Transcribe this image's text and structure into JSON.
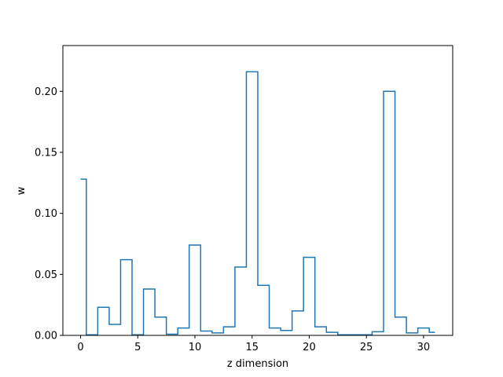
{
  "chart_data": {
    "type": "line",
    "style": "step-mid",
    "xlabel": "z dimension",
    "ylabel": "w",
    "xlim": [
      -1.55,
      32.55
    ],
    "ylim": [
      0,
      0.2375
    ],
    "x": [
      0,
      1,
      2,
      3,
      4,
      5,
      6,
      7,
      8,
      9,
      10,
      11,
      12,
      13,
      14,
      15,
      16,
      17,
      18,
      19,
      20,
      21,
      22,
      23,
      24,
      25,
      26,
      27,
      28,
      29,
      30,
      31
    ],
    "series": [
      {
        "values": [
          0.128,
          0.0005,
          0.023,
          0.009,
          0.062,
          0.0005,
          0.038,
          0.015,
          0.001,
          0.006,
          0.074,
          0.0035,
          0.002,
          0.007,
          0.056,
          0.216,
          0.041,
          0.006,
          0.004,
          0.02,
          0.064,
          0.007,
          0.0025,
          0.0005,
          0.0005,
          0.0005,
          0.003,
          0.2,
          0.015,
          0.002,
          0.006,
          0.0025
        ],
        "color": "#1f77b4"
      }
    ],
    "x_ticks": [
      0,
      5,
      10,
      15,
      20,
      25,
      30
    ],
    "x_tick_labels": [
      "0",
      "5",
      "10",
      "15",
      "20",
      "25",
      "30"
    ],
    "y_ticks": [
      0.0,
      0.05,
      0.1,
      0.15,
      0.2
    ],
    "y_tick_labels": [
      "0.00",
      "0.05",
      "0.10",
      "0.15",
      "0.20"
    ],
    "grid": false,
    "legend": "none"
  }
}
